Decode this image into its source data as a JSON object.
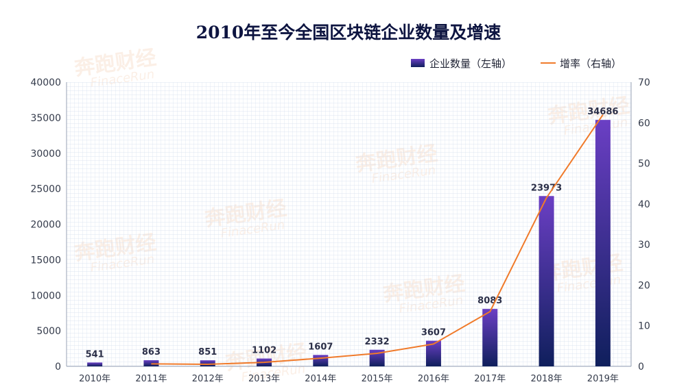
{
  "chart_data": {
    "type": "bar",
    "title": "2010年至今全国区块链企业数量及增速",
    "categories": [
      "2010年",
      "2011年",
      "2012年",
      "2013年",
      "2014年",
      "2015年",
      "2016年",
      "2017年",
      "2018年",
      "2019年"
    ],
    "series": [
      {
        "name": "企业数量（左轴）",
        "type": "bar",
        "axis": "left",
        "values": [
          541,
          863,
          851,
          1102,
          1607,
          2332,
          3607,
          8083,
          23973,
          34686
        ]
      },
      {
        "name": "增率（右轴）",
        "type": "line",
        "axis": "right",
        "values": [
          null,
          0.6,
          0.5,
          1.0,
          2.0,
          3.2,
          5.5,
          13.5,
          41.5,
          62.0
        ]
      }
    ],
    "y_left": {
      "range": [
        0,
        40000
      ],
      "ticks": [
        0,
        5000,
        10000,
        15000,
        20000,
        25000,
        30000,
        35000,
        40000
      ]
    },
    "y_right": {
      "range": [
        0,
        70
      ],
      "ticks": [
        0,
        10,
        20,
        30,
        40,
        50,
        60,
        70
      ]
    },
    "legend_position": "top-right",
    "grid": true,
    "colors": {
      "bar_top": "#6b3fc4",
      "bar_bottom": "#0f1f5c",
      "line": "#f07a2a",
      "grid": "#c9d6e8",
      "axis": "#9aa3b5"
    }
  },
  "watermark": {
    "brand": "奔跑财经",
    "sub": "FinaceRun"
  }
}
